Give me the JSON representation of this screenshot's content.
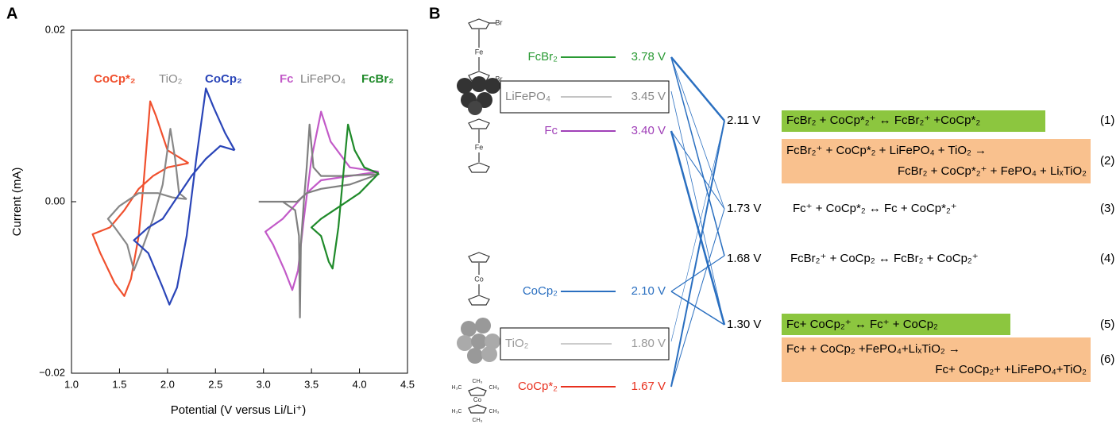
{
  "panel_labels": [
    "A",
    "B"
  ],
  "chart_data": {
    "type": "line",
    "xlabel": "Potential (V versus Li/Li⁺)",
    "ylabel": "Current (mA)",
    "xlim": [
      1.0,
      4.5
    ],
    "xticks": [
      {
        "value": 1,
        "label": "1.0"
      },
      1.5,
      {
        "value": 2,
        "label": "2.0"
      },
      2.5,
      {
        "value": 3,
        "label": "3.0"
      },
      3.5,
      {
        "value": 4,
        "label": "4.0"
      },
      4.5
    ],
    "ylim": [
      -0.02,
      0.02
    ],
    "yticks": [
      {
        "value": -0.02,
        "label": "−0.02"
      },
      {
        "value": 0,
        "label": "0.00"
      },
      {
        "value": 0.02,
        "label": "0.02"
      }
    ],
    "series": [
      {
        "name": "CoCp*₂",
        "color": "#f0502e",
        "x": [
          2.22,
          2.0,
          1.85,
          1.7,
          1.55,
          1.4,
          1.22,
          1.3,
          1.45,
          1.55,
          1.62,
          1.7,
          1.75,
          1.82,
          1.88,
          2.0,
          2.22
        ],
        "values": [
          0.0045,
          0.004,
          0.003,
          0.0015,
          -0.001,
          -0.003,
          -0.0038,
          -0.006,
          -0.0095,
          -0.011,
          -0.009,
          -0.004,
          0.002,
          0.0117,
          0.01,
          0.006,
          0.0045
        ]
      },
      {
        "name": "TiO₂",
        "color": "#888888",
        "x": [
          2.2,
          2.05,
          1.9,
          1.7,
          1.5,
          1.38,
          1.45,
          1.58,
          1.65,
          1.72,
          1.85,
          1.95,
          2.03,
          2.08,
          2.12,
          2.2
        ],
        "values": [
          0.0003,
          0.0005,
          0.001,
          0.001,
          -0.0005,
          -0.002,
          -0.003,
          -0.005,
          -0.008,
          -0.006,
          -0.002,
          0.002,
          0.0085,
          0.005,
          0.001,
          0.0003
        ]
      },
      {
        "name": "CoCp₂",
        "color": "#2a45b8",
        "x": [
          2.7,
          2.55,
          2.4,
          2.25,
          2.1,
          1.95,
          1.8,
          1.65,
          1.8,
          1.95,
          2.02,
          2.1,
          2.2,
          2.3,
          2.4,
          2.48,
          2.6,
          2.7
        ],
        "values": [
          0.006,
          0.0065,
          0.005,
          0.003,
          0.0005,
          -0.002,
          -0.003,
          -0.0045,
          -0.006,
          -0.01,
          -0.012,
          -0.01,
          -0.004,
          0.005,
          0.0132,
          0.011,
          0.008,
          0.006
        ]
      },
      {
        "name": "Fc",
        "color": "#c25ac8",
        "x": [
          4.2,
          3.9,
          3.6,
          3.4,
          3.2,
          3.02,
          3.1,
          3.22,
          3.3,
          3.36,
          3.42,
          3.5,
          3.6,
          3.7,
          3.9,
          4.2
        ],
        "values": [
          0.0035,
          0.003,
          0.0025,
          0.0005,
          -0.002,
          -0.0035,
          -0.005,
          -0.008,
          -0.0103,
          -0.008,
          -0.002,
          0.005,
          0.0105,
          0.007,
          0.004,
          0.0035
        ]
      },
      {
        "name": "LiFePO₄",
        "color": "#808080",
        "x": [
          2.95,
          3.2,
          3.33,
          3.37,
          3.38,
          3.39,
          3.42,
          3.45,
          3.48,
          3.52,
          3.6,
          3.8,
          4.2,
          3.9,
          3.6,
          3.45,
          3.35,
          3.2,
          2.95
        ],
        "values": [
          0,
          0,
          -0.001,
          -0.004,
          -0.0135,
          -0.005,
          0,
          0.004,
          0.009,
          0.004,
          0.003,
          0.003,
          0.0032,
          0.002,
          0.0015,
          0.001,
          0,
          0,
          0
        ]
      },
      {
        "name": "FcBr₂",
        "color": "#1f8a2a",
        "x": [
          4.2,
          4.0,
          3.8,
          3.6,
          3.5,
          3.6,
          3.68,
          3.72,
          3.78,
          3.83,
          3.88,
          3.95,
          4.05,
          4.2
        ],
        "values": [
          0.0033,
          0.001,
          -0.0005,
          -0.002,
          -0.003,
          -0.004,
          -0.007,
          -0.0078,
          -0.003,
          0.003,
          0.009,
          0.006,
          0.004,
          0.0033
        ]
      }
    ]
  },
  "diagram": {
    "levels": [
      {
        "label": "FcBr₂",
        "voltage": "3.78 V",
        "color": "#2a9a34",
        "boxed": false
      },
      {
        "label": "LiFePO₄",
        "voltage": "3.45 V",
        "color": "#888888",
        "boxed": true
      },
      {
        "label": "Fc",
        "voltage": "3.40 V",
        "color": "#a040b8",
        "boxed": false
      },
      {
        "label": "CoCp₂",
        "voltage": "2.10 V",
        "color": "#2a6fc0",
        "boxed": false
      },
      {
        "label": "TiO₂",
        "voltage": "1.80 V",
        "color": "#999999",
        "boxed": true
      },
      {
        "label": "CoCp*₂",
        "voltage": "1.67 V",
        "color": "#e8301e",
        "boxed": false
      }
    ],
    "reactions": [
      {
        "voltage": "2.11 V",
        "lines": [
          "FcBr₂ + CoCp*₂⁺ ↔ FcBr₂⁺ +CoCp*₂"
        ],
        "number": "(1)",
        "highlight": "#8cc63f"
      },
      {
        "lines": [
          "FcBr₂⁺ + CoCp*₂ + LiFePO₄ + TiO₂ →",
          "FcBr₂ + CoCp*₂⁺ + FePO₄ + LiₓTiO₂"
        ],
        "number": "(2)",
        "highlight": "#f9c18e"
      },
      {
        "voltage": "1.73 V",
        "lines": [
          "Fc⁺ + CoCp*₂ ↔ Fc + CoCp*₂⁺"
        ],
        "number": "(3)"
      },
      {
        "voltage": "1.68 V",
        "lines": [
          "FcBr₂⁺ + CoCp₂ ↔ FcBr₂ + CoCp₂⁺"
        ],
        "number": "(4)"
      },
      {
        "voltage": "1.30 V",
        "lines": [
          "Fc+ CoCp₂⁺ ↔ Fc⁺ + CoCp₂"
        ],
        "number": "(5)",
        "highlight": "#8cc63f"
      },
      {
        "lines": [
          "Fc+ + CoCp₂ +FePO₄+LiₓTiO₂ →",
          "Fc+ CoCp₂+  +LiFePO₄+TiO₂"
        ],
        "number": "(6)",
        "highlight": "#f9c18e"
      }
    ],
    "molecule_labels": [
      "Br",
      "Fe",
      "Br",
      "Fe",
      "Co",
      "Co",
      "CH₃",
      "H₃C",
      "CH₃",
      "H₃C",
      "CH₃",
      "CH₃"
    ]
  }
}
